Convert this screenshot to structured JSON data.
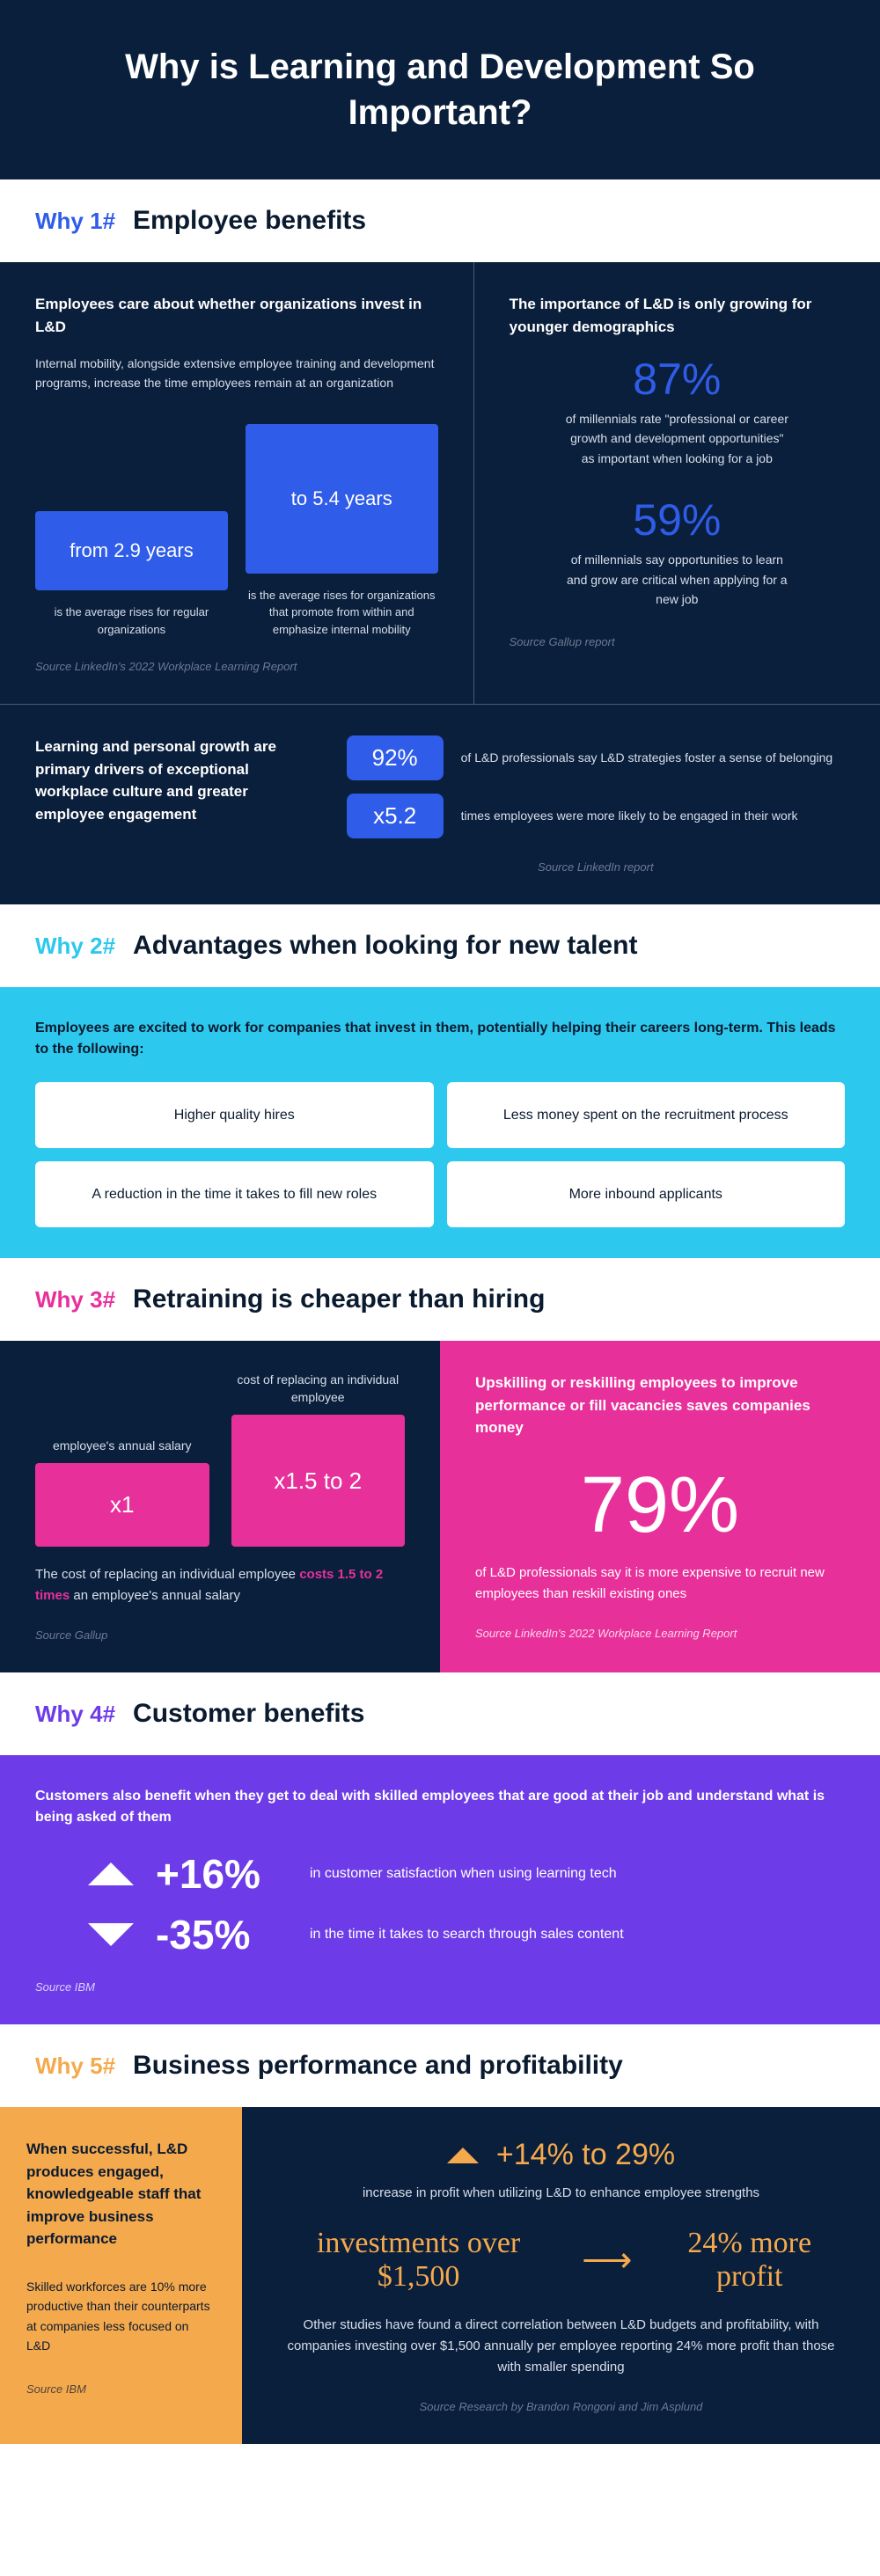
{
  "header": {
    "title": "Why is Learning and Development So Important?"
  },
  "s1": {
    "tag": "Why 1#",
    "title": "Employee benefits",
    "left": {
      "heading": "Employees care about whether organizations invest in L&D",
      "sub": "Internal mobility, alongside extensive employee training and development programs, increase the time employees remain at an organization",
      "bar1_value": "from 2.9 years",
      "bar1_label": "is the average rises for regular organizations",
      "bar2_value": "to 5.4 years",
      "bar2_label": "is the average rises for organizations that promote from within and emphasize internal mobility",
      "source": "Source LinkedIn's 2022 Workplace Learning Report"
    },
    "right": {
      "heading": "The importance of L&D is only growing for younger demographics",
      "stat1_value": "87%",
      "stat1_desc": "of millennials rate \"professional or career growth and development opportunities\" as important when looking for a job",
      "stat2_value": "59%",
      "stat2_desc": "of millennials say opportunities to learn and grow are critical when applying for a new job",
      "source": "Source Gallup report"
    },
    "bottom": {
      "heading": "Learning and personal growth are primary drivers of exceptional workplace culture and greater employee engagement",
      "stat1_value": "92%",
      "stat1_desc": "of L&D professionals say L&D strategies foster a sense of belonging",
      "stat2_value": "x5.2",
      "stat2_desc": "times employees were more likely to be engaged in their work",
      "source": "Source LinkedIn report"
    }
  },
  "s2": {
    "tag": "Why 2#",
    "title": "Advantages when looking for new talent",
    "intro": "Employees are excited to work for companies that invest in them, potentially helping their careers long-term. This leads to the following:",
    "cards": {
      "c1": "Higher quality hires",
      "c2": "Less money spent on the recruitment process",
      "c3": "A reduction in the time it takes to fill new roles",
      "c4": "More inbound applicants"
    }
  },
  "s3": {
    "tag": "Why 3#",
    "title": "Retraining is cheaper than hiring",
    "left": {
      "bar1_label": "employee's annual salary",
      "bar1_value": "x1",
      "bar2_label": "cost of replacing an individual employee",
      "bar2_value": "x1.5 to 2",
      "desc_pre": "The cost of replacing an individual employee ",
      "desc_hl": "costs 1.5 to 2 times",
      "desc_post": " an employee's annual salary",
      "source": "Source Gallup"
    },
    "right": {
      "heading": "Upskilling or reskilling employees to improve performance or fill vacancies saves companies money",
      "pct": "79%",
      "desc": "of L&D professionals say it is more expensive to recruit new employees than reskill existing ones",
      "source": "Source LinkedIn's 2022 Workplace Learning Report"
    }
  },
  "s4": {
    "tag": "Why 4#",
    "title": "Customer benefits",
    "intro": "Customers also benefit when they get to deal with skilled employees that are good at their job and understand what is being asked of them",
    "stat1_value": "+16%",
    "stat1_desc": "in customer satisfaction when using learning tech",
    "stat2_value": "-35%",
    "stat2_desc": "in the time it takes to search through sales content",
    "source": "Source IBM"
  },
  "s5": {
    "tag": "Why 5#",
    "title": "Business performance and profitability",
    "left": {
      "heading": "When successful, L&D produces engaged, knowledgeable staff that improve business performance",
      "sub": "Skilled workforces are 10% more productive than their counterparts at companies less focused on L&D",
      "source": "Source IBM"
    },
    "right": {
      "pct": "+14% to 29%",
      "desc1": "increase in profit when utilizing L&D to enhance employee strengths",
      "fancy1": "investments over $1,500",
      "fancy2": "24% more profit",
      "desc2": "Other studies have found a direct correlation between L&D budgets and profitability, with companies investing over $1,500 annually per employee reporting 24% more profit than those with smaller spending",
      "source": "Source Research by Brandon Rongoni and Jim Asplund"
    }
  }
}
